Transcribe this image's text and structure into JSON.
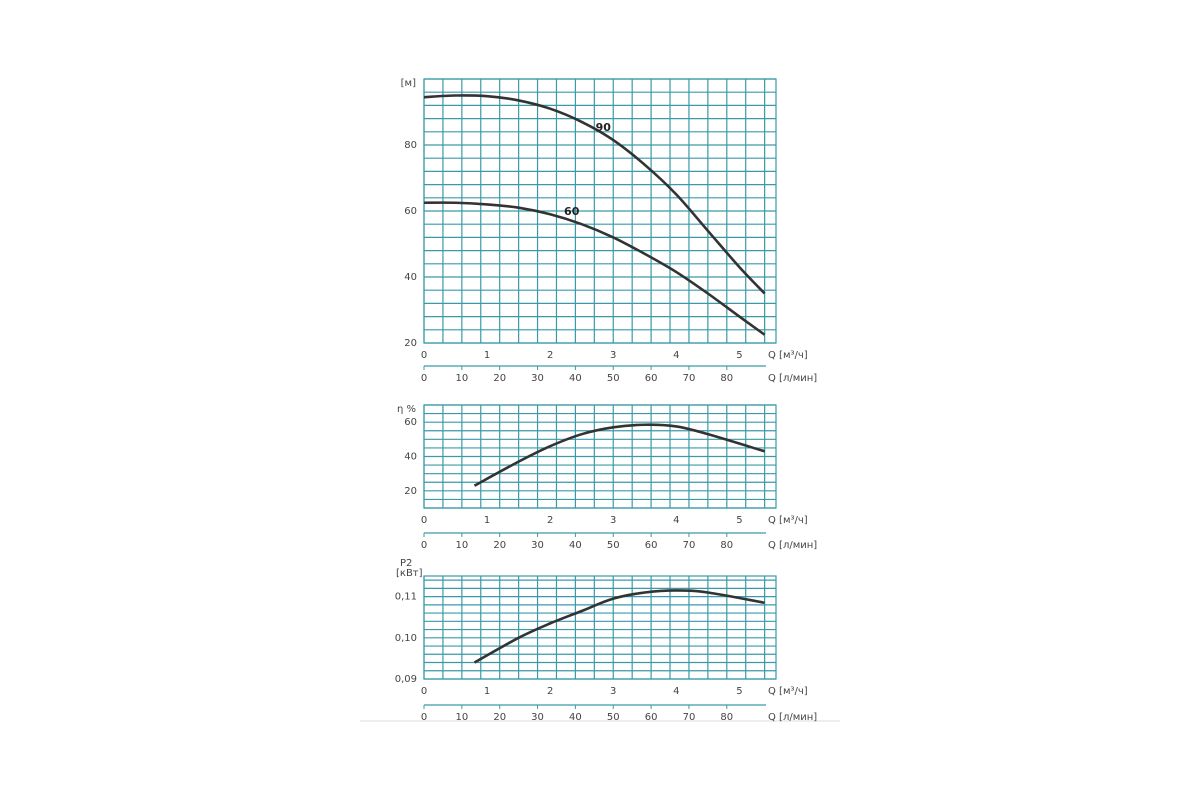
{
  "chart_data": [
    {
      "type": "line",
      "ylabel": "[м]",
      "xlabel": "Q [м³/ч]",
      "x2label": "Q [л/мин]",
      "xlim": [
        0,
        5.58
      ],
      "xticks": [
        0,
        1,
        2,
        3,
        4,
        5
      ],
      "x2lim": [
        0,
        93
      ],
      "x2ticks": [
        0,
        10,
        20,
        30,
        40,
        50,
        60,
        70,
        80
      ],
      "x2grid": [
        0,
        5,
        10,
        15,
        20,
        25,
        30,
        35,
        40,
        45,
        50,
        55,
        60,
        65,
        70,
        75,
        80,
        85,
        90
      ],
      "ylim": [
        20,
        100
      ],
      "yticks": [
        20,
        40,
        60,
        80
      ],
      "ygrid": [
        20,
        24,
        28,
        32,
        36,
        40,
        44,
        48,
        52,
        56,
        60,
        64,
        68,
        72,
        76,
        80,
        84,
        88,
        92,
        96,
        100
      ],
      "grid_color": "#3a9aa8",
      "x": [
        0,
        0.5,
        1,
        1.5,
        2,
        2.5,
        3,
        3.5,
        4,
        4.5,
        5,
        5.4
      ],
      "series": [
        {
          "name": "90",
          "color": "#333333",
          "values": [
            94.5,
            95,
            94.8,
            93.5,
            91,
            87,
            81.5,
            74,
            65,
            54,
            43,
            35
          ]
        },
        {
          "name": "60",
          "color": "#333333",
          "values": [
            62.5,
            62.5,
            62,
            61,
            59,
            56,
            52,
            47,
            41.5,
            35,
            28,
            22.5
          ]
        }
      ]
    },
    {
      "type": "line",
      "ylabel": "η %",
      "xlabel": "Q [м³/ч]",
      "x2label": "Q [л/мин]",
      "xlim": [
        0,
        5.58
      ],
      "xticks": [
        0,
        1,
        2,
        3,
        4,
        5
      ],
      "x2lim": [
        0,
        93
      ],
      "x2ticks": [
        0,
        10,
        20,
        30,
        40,
        50,
        60,
        70,
        80
      ],
      "x2grid": [
        0,
        5,
        10,
        15,
        20,
        25,
        30,
        35,
        40,
        45,
        50,
        55,
        60,
        65,
        70,
        75,
        80,
        85,
        90
      ],
      "ylim": [
        10,
        70
      ],
      "yticks": [
        20,
        40,
        60
      ],
      "ygrid": [
        10,
        15,
        20,
        25,
        30,
        35,
        40,
        45,
        50,
        55,
        60,
        65,
        70
      ],
      "grid_color": "#3a9aa8",
      "x": [
        0.8,
        1.5,
        2,
        2.5,
        3,
        3.5,
        4,
        4.5,
        5.4
      ],
      "color": "#333333",
      "values": [
        23,
        37,
        46,
        53,
        57,
        58.5,
        57.5,
        53,
        43
      ]
    },
    {
      "type": "line",
      "ylabel": "P2",
      "yunit": "[кВт]",
      "xlabel": "Q [м³/ч]",
      "x2label": "Q [л/мин]",
      "xlim": [
        0,
        5.58
      ],
      "xticks": [
        0,
        1,
        2,
        3,
        4,
        5
      ],
      "x2lim": [
        0,
        93
      ],
      "x2ticks": [
        0,
        10,
        20,
        30,
        40,
        50,
        60,
        70,
        80
      ],
      "x2grid": [
        0,
        5,
        10,
        15,
        20,
        25,
        30,
        35,
        40,
        45,
        50,
        55,
        60,
        65,
        70,
        75,
        80,
        85,
        90
      ],
      "ylim": [
        0.09,
        0.115
      ],
      "yticks": [
        {
          "value": 0.09,
          "label": "0,09"
        },
        {
          "value": 0.1,
          "label": "0,10"
        },
        {
          "value": 0.11,
          "label": "0,11"
        }
      ],
      "ygrid": [
        0.09,
        0.092,
        0.094,
        0.096,
        0.098,
        0.1,
        0.102,
        0.104,
        0.106,
        0.108,
        0.11,
        0.112,
        0.114
      ],
      "grid_color": "#3a9aa8",
      "x": [
        0.8,
        1.5,
        2,
        2.5,
        3,
        3.5,
        4,
        4.5,
        5.4
      ],
      "color": "#333333",
      "values": [
        0.094,
        0.1,
        0.1035,
        0.1065,
        0.1095,
        0.111,
        0.1115,
        0.111,
        0.1085
      ]
    }
  ]
}
